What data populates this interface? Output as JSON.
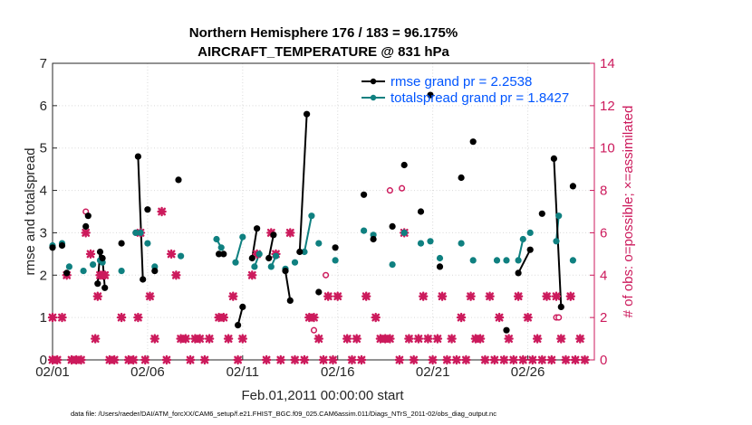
{
  "chart_data": {
    "type": "line",
    "title": "Northern Hemisphere 176 / 183 = 96.175%",
    "subtitle": "AIRCRAFT_TEMPERATURE @ 831 hPa",
    "xlabel": "Feb.01,2011 00:00:00 start",
    "ylabel": "rmse and totalspread",
    "ylabel_right": "# of obs: o=possible; ×=assimilated",
    "footer": "data file: /Users/raeder/DAI/ATM_forcXX/CAM6_setup/f.e21.FHIST_BGC.f09_025.CAM6assim.011/Diags_NTrS_2011-02/obs_diag_output.nc",
    "x_tick_labels": [
      "02/01",
      "02/06",
      "02/11",
      "02/16",
      "02/21",
      "02/26"
    ],
    "x_ticks_day": [
      1,
      6,
      11,
      16,
      21,
      26
    ],
    "xlim_day": [
      1,
      29.5
    ],
    "ylim": [
      0,
      7
    ],
    "y_ticks": [
      0,
      1,
      2,
      3,
      4,
      5,
      6,
      7
    ],
    "ylim_right": [
      0,
      14
    ],
    "y_ticks_right": [
      0,
      2,
      4,
      6,
      8,
      10,
      12,
      14
    ],
    "grid": true,
    "legend_position": "top-right",
    "colors": {
      "rmse": "#000000",
      "totalspread": "#0f8080",
      "obs": "#cc1a5c",
      "legend_text": "#0055ff",
      "right_axis": "#cc1a5c"
    },
    "series": [
      {
        "name": "rmse grand pr = 2.2538",
        "points": [
          [
            1.0,
            2.65
          ],
          [
            1.5,
            2.7
          ],
          [
            1.75,
            2.05
          ],
          [
            2.75,
            3.15
          ],
          [
            2.875,
            3.4
          ],
          [
            3.375,
            1.8
          ],
          [
            3.5,
            2.55
          ],
          [
            3.625,
            2.4
          ],
          [
            3.75,
            1.7
          ],
          [
            4.625,
            2.75
          ],
          [
            5.5,
            4.8
          ],
          [
            5.75,
            1.9
          ],
          [
            6.0,
            3.55
          ],
          [
            6.375,
            2.1
          ],
          [
            7.625,
            4.25
          ],
          [
            9.75,
            2.5
          ],
          [
            10.0,
            2.5
          ],
          [
            10.75,
            0.82
          ],
          [
            11.0,
            1.25
          ],
          [
            11.5,
            2.4
          ],
          [
            11.75,
            3.1
          ],
          [
            12.375,
            2.4
          ],
          [
            12.625,
            2.95
          ],
          [
            13.25,
            2.1
          ],
          [
            13.5,
            1.4
          ],
          [
            14.0,
            2.55
          ],
          [
            14.375,
            5.8
          ],
          [
            15.0,
            1.6
          ],
          [
            15.875,
            2.65
          ],
          [
            17.375,
            3.9
          ],
          [
            17.875,
            2.85
          ],
          [
            18.875,
            3.15
          ],
          [
            19.5,
            4.6
          ],
          [
            20.375,
            3.5
          ],
          [
            20.875,
            6.25
          ],
          [
            21.375,
            2.2
          ],
          [
            22.5,
            4.3
          ],
          [
            23.125,
            5.15
          ],
          [
            24.875,
            0.7
          ],
          [
            25.5,
            2.05
          ],
          [
            26.125,
            2.6
          ],
          [
            26.75,
            3.45
          ],
          [
            27.375,
            4.75
          ],
          [
            27.75,
            1.25
          ],
          [
            28.375,
            4.1
          ]
        ],
        "segments": [
          [
            [
              3.375,
              1.8
            ],
            [
              3.5,
              2.55
            ],
            [
              3.625,
              2.4
            ],
            [
              3.75,
              1.7
            ]
          ],
          [
            [
              5.5,
              4.8
            ],
            [
              5.75,
              1.9
            ]
          ],
          [
            [
              10.75,
              0.82
            ],
            [
              11.0,
              1.25
            ]
          ],
          [
            [
              11.5,
              2.4
            ],
            [
              11.75,
              3.1
            ]
          ],
          [
            [
              12.375,
              2.4
            ],
            [
              12.625,
              2.95
            ]
          ],
          [
            [
              13.25,
              2.1
            ],
            [
              13.5,
              1.4
            ]
          ],
          [
            [
              14.0,
              2.55
            ],
            [
              14.375,
              5.8
            ]
          ],
          [
            [
              25.5,
              2.05
            ],
            [
              26.125,
              2.6
            ]
          ],
          [
            [
              27.375,
              4.75
            ],
            [
              27.75,
              1.25
            ]
          ]
        ]
      },
      {
        "name": "totalspread grand pr = 1.8427",
        "points": [
          [
            1.0,
            2.7
          ],
          [
            1.5,
            2.75
          ],
          [
            1.875,
            2.2
          ],
          [
            2.625,
            2.1
          ],
          [
            3.125,
            2.25
          ],
          [
            3.5,
            2.35
          ],
          [
            3.625,
            2.3
          ],
          [
            4.625,
            2.1
          ],
          [
            5.375,
            3.0
          ],
          [
            5.625,
            3.0
          ],
          [
            6.0,
            2.75
          ],
          [
            6.375,
            2.2
          ],
          [
            7.75,
            2.45
          ],
          [
            9.625,
            2.85
          ],
          [
            9.875,
            2.65
          ],
          [
            10.625,
            2.3
          ],
          [
            11.0,
            2.9
          ],
          [
            11.625,
            2.2
          ],
          [
            11.875,
            2.5
          ],
          [
            12.5,
            2.2
          ],
          [
            12.75,
            2.45
          ],
          [
            13.25,
            2.15
          ],
          [
            13.75,
            2.3
          ],
          [
            14.25,
            2.55
          ],
          [
            14.625,
            3.4
          ],
          [
            15.0,
            2.75
          ],
          [
            15.875,
            2.35
          ],
          [
            17.375,
            3.05
          ],
          [
            17.875,
            2.95
          ],
          [
            18.875,
            2.25
          ],
          [
            19.5,
            3.0
          ],
          [
            20.375,
            2.75
          ],
          [
            20.875,
            2.8
          ],
          [
            21.375,
            2.4
          ],
          [
            22.5,
            2.75
          ],
          [
            23.125,
            2.35
          ],
          [
            24.375,
            2.35
          ],
          [
            24.875,
            2.35
          ],
          [
            25.5,
            2.35
          ],
          [
            25.75,
            2.85
          ],
          [
            26.125,
            3.0
          ],
          [
            27.5,
            2.8
          ],
          [
            27.625,
            3.4
          ],
          [
            28.375,
            2.35
          ]
        ],
        "segments": [
          [
            [
              3.5,
              2.35
            ],
            [
              3.625,
              2.3
            ]
          ],
          [
            [
              5.375,
              3.0
            ],
            [
              5.625,
              3.0
            ]
          ],
          [
            [
              9.625,
              2.85
            ],
            [
              9.875,
              2.65
            ]
          ],
          [
            [
              10.625,
              2.3
            ],
            [
              11.0,
              2.9
            ]
          ],
          [
            [
              11.625,
              2.2
            ],
            [
              11.875,
              2.5
            ]
          ],
          [
            [
              12.5,
              2.2
            ],
            [
              12.75,
              2.45
            ]
          ],
          [
            [
              14.25,
              2.55
            ],
            [
              14.625,
              3.4
            ]
          ],
          [
            [
              25.5,
              2.35
            ],
            [
              25.75,
              2.85
            ]
          ],
          [
            [
              27.5,
              2.8
            ],
            [
              27.625,
              3.4
            ]
          ]
        ]
      },
      {
        "name": "possible",
        "points": [
          [
            2.75,
            7.0
          ],
          [
            5.375,
            6.0
          ],
          [
            14.75,
            1.4
          ],
          [
            15.375,
            4.0
          ],
          [
            18.75,
            8.0
          ],
          [
            19.375,
            8.1
          ],
          [
            27.5,
            2.0
          ],
          [
            27.625,
            2.0
          ]
        ]
      },
      {
        "name": "assimilated",
        "points": [
          [
            1.0,
            0
          ],
          [
            1.0,
            2
          ],
          [
            1.25,
            0
          ],
          [
            1.5,
            2
          ],
          [
            1.75,
            4
          ],
          [
            2.0,
            0
          ],
          [
            2.25,
            0
          ],
          [
            2.5,
            0
          ],
          [
            2.75,
            6
          ],
          [
            3.0,
            5
          ],
          [
            3.25,
            1
          ],
          [
            3.375,
            3
          ],
          [
            3.5,
            4
          ],
          [
            3.625,
            4
          ],
          [
            3.75,
            4
          ],
          [
            4.0,
            0
          ],
          [
            4.25,
            0
          ],
          [
            4.625,
            2
          ],
          [
            5.0,
            0
          ],
          [
            5.25,
            0
          ],
          [
            5.5,
            2
          ],
          [
            5.625,
            6
          ],
          [
            5.875,
            0
          ],
          [
            6.125,
            3
          ],
          [
            6.375,
            1
          ],
          [
            6.75,
            7
          ],
          [
            7.0,
            0
          ],
          [
            7.25,
            5
          ],
          [
            7.5,
            4
          ],
          [
            7.75,
            1
          ],
          [
            8.0,
            1
          ],
          [
            8.25,
            0
          ],
          [
            8.5,
            1
          ],
          [
            8.75,
            1
          ],
          [
            9.0,
            0
          ],
          [
            9.25,
            1
          ],
          [
            9.75,
            2
          ],
          [
            10.0,
            2
          ],
          [
            10.25,
            1
          ],
          [
            10.5,
            3
          ],
          [
            10.75,
            0
          ],
          [
            11.0,
            1
          ],
          [
            11.5,
            4
          ],
          [
            11.75,
            5
          ],
          [
            12.25,
            0
          ],
          [
            12.5,
            6
          ],
          [
            12.75,
            5
          ],
          [
            13.0,
            0
          ],
          [
            13.5,
            6
          ],
          [
            13.75,
            0
          ],
          [
            14.25,
            0
          ],
          [
            14.5,
            2
          ],
          [
            14.75,
            2
          ],
          [
            15.0,
            1
          ],
          [
            15.25,
            0
          ],
          [
            15.5,
            3
          ],
          [
            15.75,
            0
          ],
          [
            16.0,
            3
          ],
          [
            16.5,
            1
          ],
          [
            16.75,
            0
          ],
          [
            17.0,
            1
          ],
          [
            17.25,
            0
          ],
          [
            17.5,
            3
          ],
          [
            18.0,
            2
          ],
          [
            18.25,
            1
          ],
          [
            18.5,
            1
          ],
          [
            18.75,
            1
          ],
          [
            19.25,
            0
          ],
          [
            19.5,
            6
          ],
          [
            19.75,
            1
          ],
          [
            20.0,
            0
          ],
          [
            20.25,
            1
          ],
          [
            20.5,
            3
          ],
          [
            20.75,
            1
          ],
          [
            21.0,
            0
          ],
          [
            21.25,
            1
          ],
          [
            21.5,
            3
          ],
          [
            21.75,
            0
          ],
          [
            22.0,
            1
          ],
          [
            22.25,
            0
          ],
          [
            22.5,
            2
          ],
          [
            22.75,
            0
          ],
          [
            23.0,
            3
          ],
          [
            23.25,
            1
          ],
          [
            23.5,
            1
          ],
          [
            23.75,
            0
          ],
          [
            24.0,
            3
          ],
          [
            24.25,
            0
          ],
          [
            24.5,
            2
          ],
          [
            24.75,
            0
          ],
          [
            25.0,
            1
          ],
          [
            25.25,
            0
          ],
          [
            25.5,
            3
          ],
          [
            25.75,
            0
          ],
          [
            26.0,
            2
          ],
          [
            26.25,
            0
          ],
          [
            26.5,
            1
          ],
          [
            26.75,
            0
          ],
          [
            27.0,
            3
          ],
          [
            27.25,
            0
          ],
          [
            27.5,
            3
          ],
          [
            27.75,
            1
          ],
          [
            28.0,
            0
          ],
          [
            28.25,
            3
          ],
          [
            28.5,
            0
          ],
          [
            28.75,
            1
          ],
          [
            29.0,
            0
          ]
        ]
      }
    ]
  }
}
